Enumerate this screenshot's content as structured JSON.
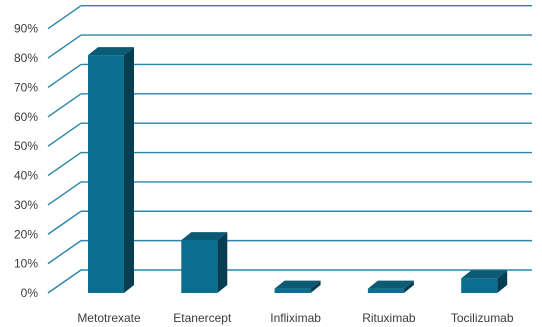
{
  "chart_data": {
    "type": "bar",
    "title": "",
    "xlabel": "",
    "ylabel": "",
    "categories": [
      "Metotrexate",
      "Etanercept",
      "Infliximab",
      "Rituximab",
      "Tocilizumab"
    ],
    "values": [
      81,
      18,
      1.5,
      1.5,
      5
    ],
    "ylim": [
      0,
      90
    ],
    "yticks": [
      "0%",
      "10%",
      "20%",
      "30%",
      "40%",
      "50%",
      "60%",
      "70%",
      "80%",
      "90%"
    ],
    "grid": true,
    "style": "3d-column",
    "colors": {
      "bar_front": "#0b6d8f",
      "bar_top": "#0d5a75",
      "bar_side": "#073e52",
      "grid": "#2b85a8",
      "text": "#3c3c3c"
    }
  }
}
